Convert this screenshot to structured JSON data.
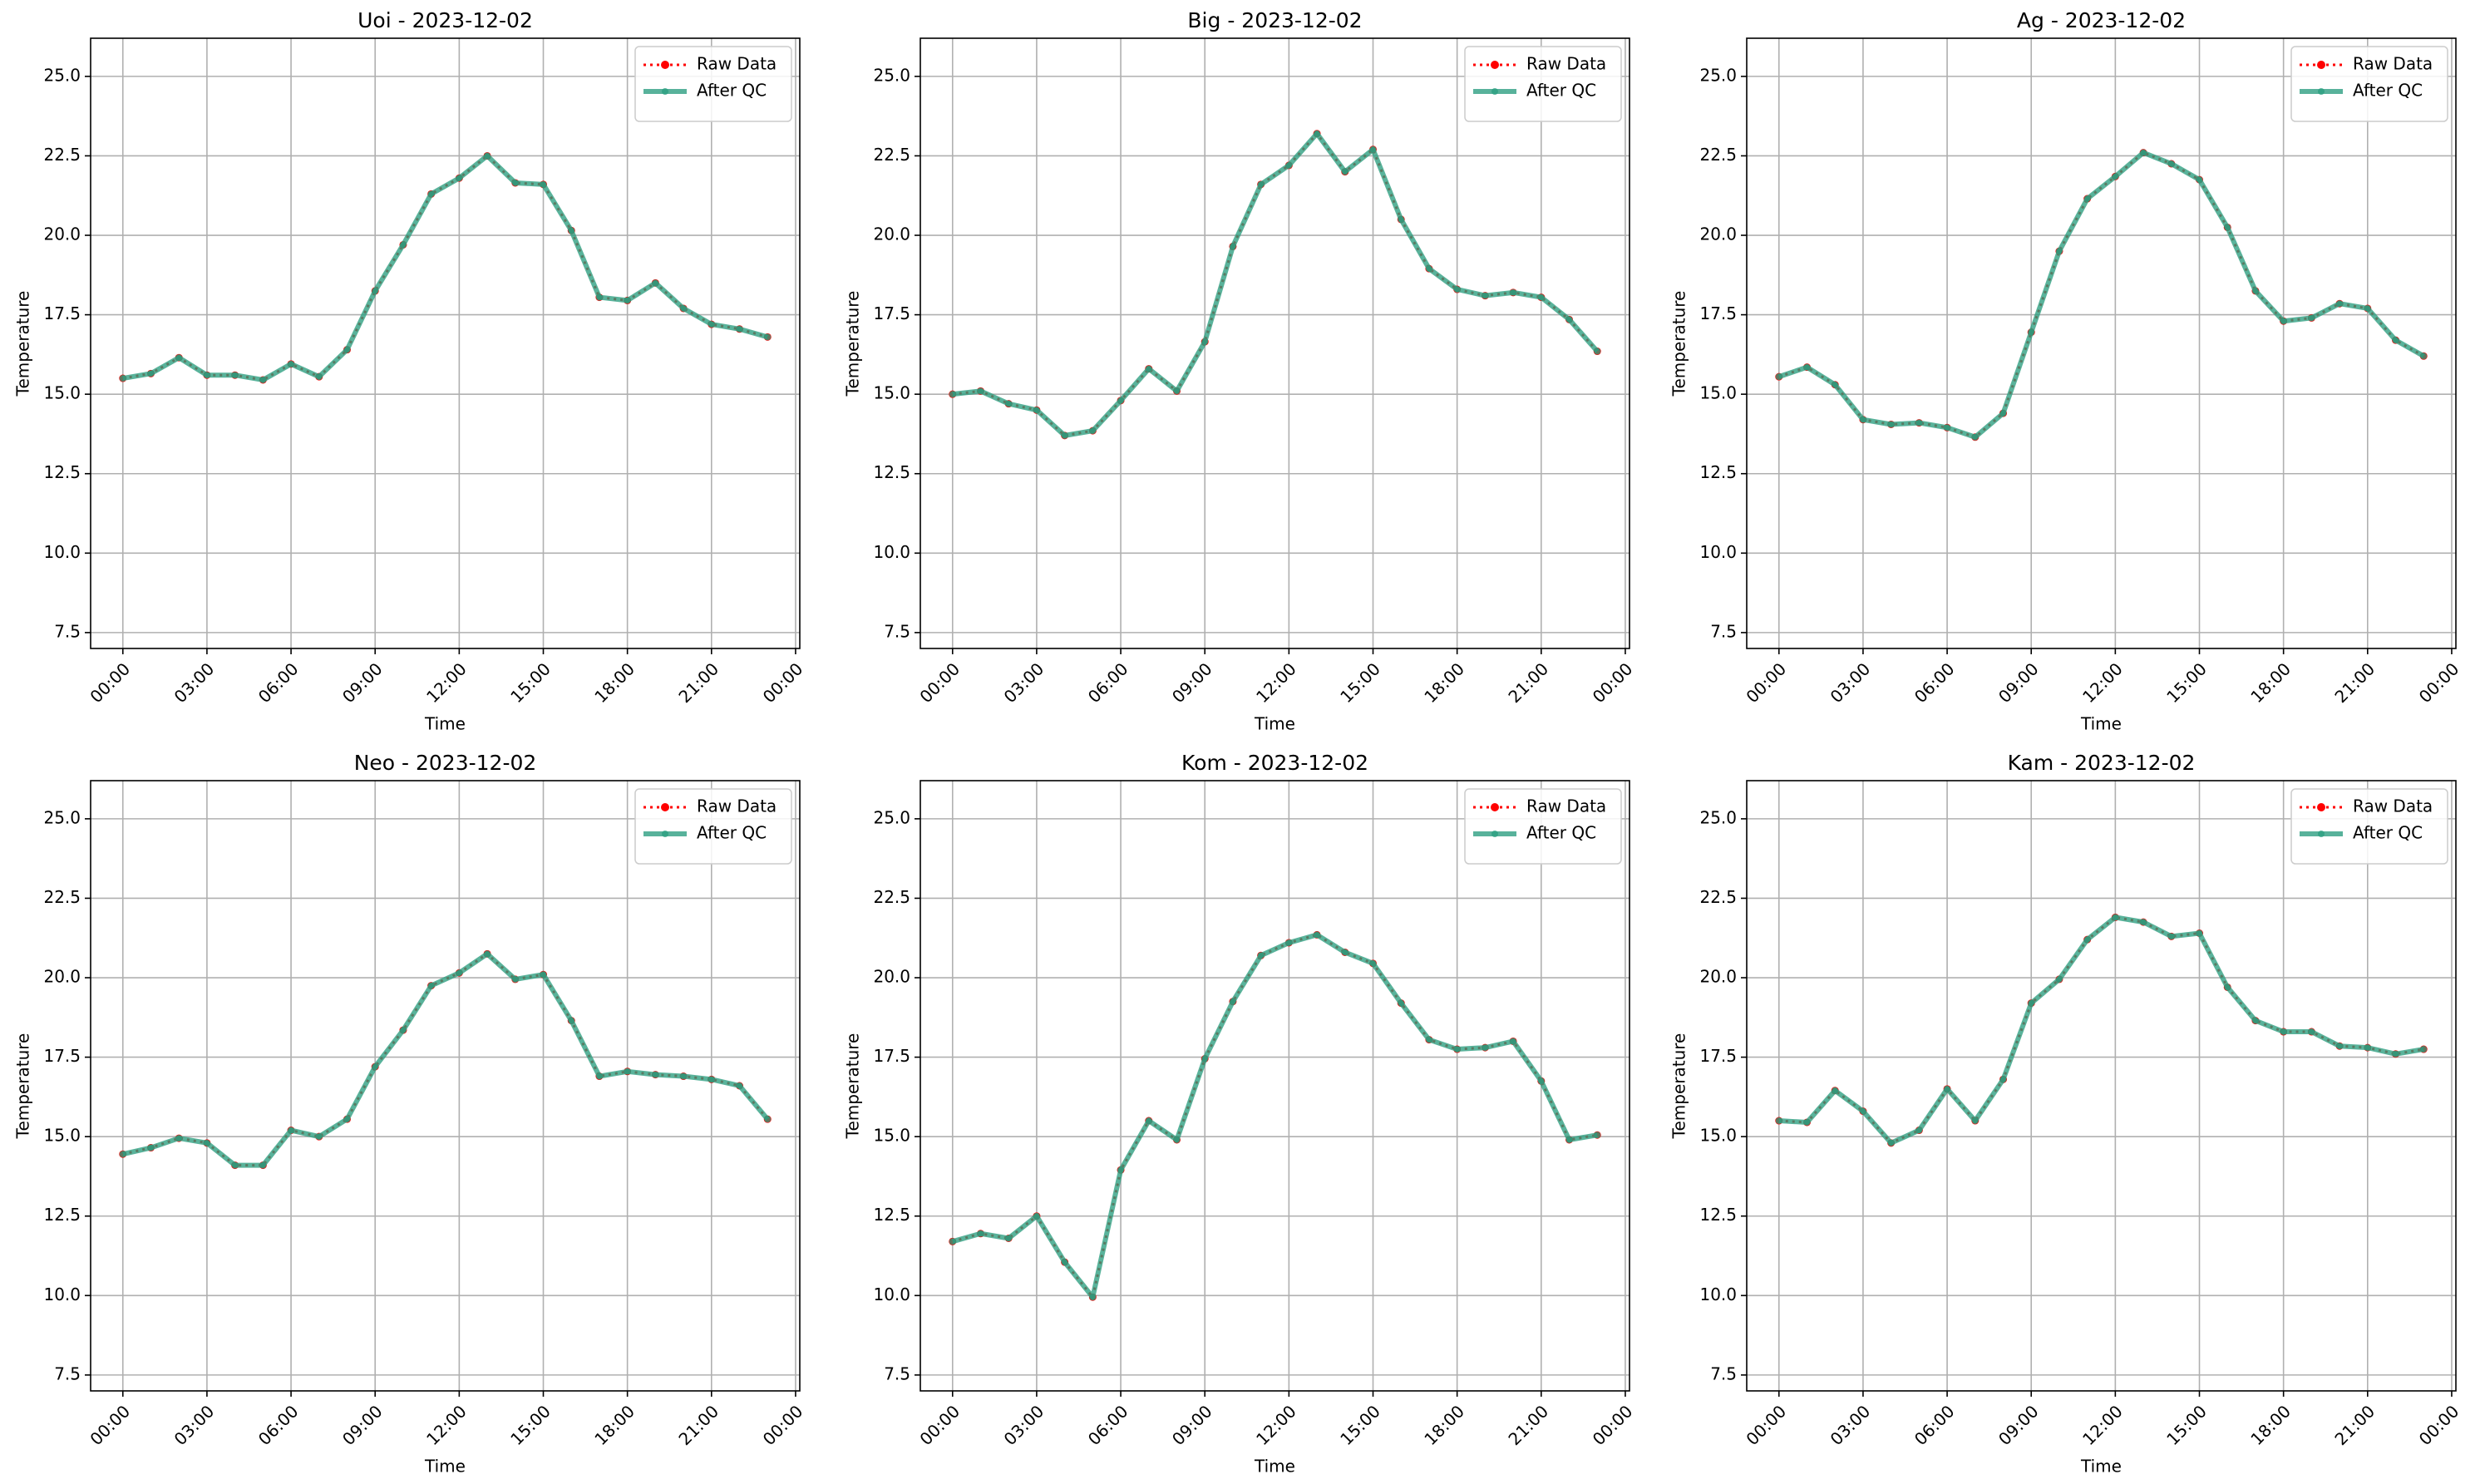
{
  "chart_data": [
    {
      "type": "line",
      "title": "Uoi - 2023-12-02",
      "xlabel": "Time",
      "ylabel": "Temperature",
      "grid": true,
      "legend": "upper right",
      "x": [
        0,
        1,
        2,
        3,
        4,
        5,
        6,
        7,
        8,
        9,
        10,
        11,
        12,
        13,
        14,
        15,
        16,
        17,
        18,
        19,
        20,
        21,
        22,
        23
      ],
      "xlim": [
        -1.15,
        24.15
      ],
      "ylim": [
        7.0,
        26.2
      ],
      "xticks": [
        {
          "value": 0,
          "label": "00:00"
        },
        {
          "value": 3,
          "label": "03:00"
        },
        {
          "value": 6,
          "label": "06:00"
        },
        {
          "value": 9,
          "label": "09:00"
        },
        {
          "value": 12,
          "label": "12:00"
        },
        {
          "value": 15,
          "label": "15:00"
        },
        {
          "value": 18,
          "label": "18:00"
        },
        {
          "value": 21,
          "label": "21:00"
        },
        {
          "value": 24,
          "label": "00:00"
        }
      ],
      "yticks": [
        7.5,
        {
          "value": 10,
          "label": "10.0"
        },
        12.5,
        {
          "value": 15,
          "label": "15.0"
        },
        17.5,
        {
          "value": 20,
          "label": "20.0"
        },
        22.5,
        {
          "value": 25,
          "label": "25.0"
        }
      ],
      "series": [
        {
          "name": "Raw Data",
          "color": "#ff0000",
          "values": [
            15.5,
            15.65,
            16.15,
            15.6,
            15.6,
            15.45,
            15.95,
            15.55,
            16.4,
            18.25,
            19.7,
            21.3,
            21.8,
            22.5,
            21.65,
            21.6,
            20.15,
            18.05,
            17.95,
            18.5,
            17.7,
            17.2,
            17.05,
            16.8
          ]
        },
        {
          "name": "After QC",
          "color": "#2a9d7f",
          "values": [
            15.5,
            15.65,
            16.15,
            15.6,
            15.6,
            15.45,
            15.95,
            15.55,
            16.4,
            18.25,
            19.7,
            21.3,
            21.8,
            22.5,
            21.65,
            21.6,
            20.15,
            18.05,
            17.95,
            18.5,
            17.7,
            17.2,
            17.05,
            16.8
          ]
        }
      ]
    },
    {
      "type": "line",
      "title": "Big - 2023-12-02",
      "xlabel": "Time",
      "ylabel": "Temperature",
      "grid": true,
      "legend": "upper right",
      "x": [
        0,
        1,
        2,
        3,
        4,
        5,
        6,
        7,
        8,
        9,
        10,
        11,
        12,
        13,
        14,
        15,
        16,
        17,
        18,
        19,
        20,
        21,
        22,
        23
      ],
      "xlim": [
        -1.15,
        24.15
      ],
      "ylim": [
        7.0,
        26.2
      ],
      "xticks": [
        {
          "value": 0,
          "label": "00:00"
        },
        {
          "value": 3,
          "label": "03:00"
        },
        {
          "value": 6,
          "label": "06:00"
        },
        {
          "value": 9,
          "label": "09:00"
        },
        {
          "value": 12,
          "label": "12:00"
        },
        {
          "value": 15,
          "label": "15:00"
        },
        {
          "value": 18,
          "label": "18:00"
        },
        {
          "value": 21,
          "label": "21:00"
        },
        {
          "value": 24,
          "label": "00:00"
        }
      ],
      "yticks": [
        7.5,
        {
          "value": 10,
          "label": "10.0"
        },
        12.5,
        {
          "value": 15,
          "label": "15.0"
        },
        17.5,
        {
          "value": 20,
          "label": "20.0"
        },
        22.5,
        {
          "value": 25,
          "label": "25.0"
        }
      ],
      "series": [
        {
          "name": "Raw Data",
          "color": "#ff0000",
          "values": [
            15.0,
            15.1,
            14.7,
            14.5,
            13.7,
            13.85,
            14.8,
            15.8,
            15.1,
            16.65,
            19.65,
            21.6,
            22.2,
            23.2,
            22.0,
            22.7,
            20.5,
            18.95,
            18.3,
            18.1,
            18.2,
            18.05,
            17.35,
            16.35
          ]
        },
        {
          "name": "After QC",
          "color": "#2a9d7f",
          "values": [
            15.0,
            15.1,
            14.7,
            14.5,
            13.7,
            13.85,
            14.8,
            15.8,
            15.1,
            16.65,
            19.65,
            21.6,
            22.2,
            23.2,
            22.0,
            22.7,
            20.5,
            18.95,
            18.3,
            18.1,
            18.2,
            18.05,
            17.35,
            16.35
          ]
        }
      ]
    },
    {
      "type": "line",
      "title": "Ag - 2023-12-02",
      "xlabel": "Time",
      "ylabel": "Temperature",
      "grid": true,
      "legend": "upper right",
      "x": [
        0,
        1,
        2,
        3,
        4,
        5,
        6,
        7,
        8,
        9,
        10,
        11,
        12,
        13,
        14,
        15,
        16,
        17,
        18,
        19,
        20,
        21,
        22,
        23
      ],
      "xlim": [
        -1.15,
        24.15
      ],
      "ylim": [
        7.0,
        26.2
      ],
      "xticks": [
        {
          "value": 0,
          "label": "00:00"
        },
        {
          "value": 3,
          "label": "03:00"
        },
        {
          "value": 6,
          "label": "06:00"
        },
        {
          "value": 9,
          "label": "09:00"
        },
        {
          "value": 12,
          "label": "12:00"
        },
        {
          "value": 15,
          "label": "15:00"
        },
        {
          "value": 18,
          "label": "18:00"
        },
        {
          "value": 21,
          "label": "21:00"
        },
        {
          "value": 24,
          "label": "00:00"
        }
      ],
      "yticks": [
        7.5,
        {
          "value": 10,
          "label": "10.0"
        },
        12.5,
        {
          "value": 15,
          "label": "15.0"
        },
        17.5,
        {
          "value": 20,
          "label": "20.0"
        },
        22.5,
        {
          "value": 25,
          "label": "25.0"
        }
      ],
      "series": [
        {
          "name": "Raw Data",
          "color": "#ff0000",
          "values": [
            15.55,
            15.85,
            15.3,
            14.2,
            14.05,
            14.1,
            13.95,
            13.65,
            14.4,
            16.95,
            19.5,
            21.15,
            21.85,
            22.6,
            22.25,
            21.75,
            20.25,
            18.25,
            17.3,
            17.4,
            17.85,
            17.7,
            16.7,
            16.2
          ]
        },
        {
          "name": "After QC",
          "color": "#2a9d7f",
          "values": [
            15.55,
            15.85,
            15.3,
            14.2,
            14.05,
            14.1,
            13.95,
            13.65,
            14.4,
            16.95,
            19.5,
            21.15,
            21.85,
            22.6,
            22.25,
            21.75,
            20.25,
            18.25,
            17.3,
            17.4,
            17.85,
            17.7,
            16.7,
            16.2
          ]
        }
      ]
    },
    {
      "type": "line",
      "title": "Neo - 2023-12-02",
      "xlabel": "Time",
      "ylabel": "Temperature",
      "grid": true,
      "legend": "upper right",
      "x": [
        0,
        1,
        2,
        3,
        4,
        5,
        6,
        7,
        8,
        9,
        10,
        11,
        12,
        13,
        14,
        15,
        16,
        17,
        18,
        19,
        20,
        21,
        22,
        23
      ],
      "xlim": [
        -1.15,
        24.15
      ],
      "ylim": [
        7.0,
        26.2
      ],
      "xticks": [
        {
          "value": 0,
          "label": "00:00"
        },
        {
          "value": 3,
          "label": "03:00"
        },
        {
          "value": 6,
          "label": "06:00"
        },
        {
          "value": 9,
          "label": "09:00"
        },
        {
          "value": 12,
          "label": "12:00"
        },
        {
          "value": 15,
          "label": "15:00"
        },
        {
          "value": 18,
          "label": "18:00"
        },
        {
          "value": 21,
          "label": "21:00"
        },
        {
          "value": 24,
          "label": "00:00"
        }
      ],
      "yticks": [
        7.5,
        {
          "value": 10,
          "label": "10.0"
        },
        12.5,
        {
          "value": 15,
          "label": "15.0"
        },
        17.5,
        {
          "value": 20,
          "label": "20.0"
        },
        22.5,
        {
          "value": 25,
          "label": "25.0"
        }
      ],
      "series": [
        {
          "name": "Raw Data",
          "color": "#ff0000",
          "values": [
            14.45,
            14.65,
            14.95,
            14.8,
            14.1,
            14.1,
            15.2,
            15.0,
            15.55,
            17.2,
            18.35,
            19.75,
            20.15,
            20.75,
            19.95,
            20.1,
            18.65,
            16.9,
            17.05,
            16.95,
            16.9,
            16.8,
            16.6,
            15.55
          ]
        },
        {
          "name": "After QC",
          "color": "#2a9d7f",
          "values": [
            14.45,
            14.65,
            14.95,
            14.8,
            14.1,
            14.1,
            15.2,
            15.0,
            15.55,
            17.2,
            18.35,
            19.75,
            20.15,
            20.75,
            19.95,
            20.1,
            18.65,
            16.9,
            17.05,
            16.95,
            16.9,
            16.8,
            16.6,
            15.55
          ]
        }
      ]
    },
    {
      "type": "line",
      "title": "Kom - 2023-12-02",
      "xlabel": "Time",
      "ylabel": "Temperature",
      "grid": true,
      "legend": "upper right",
      "x": [
        0,
        1,
        2,
        3,
        4,
        5,
        6,
        7,
        8,
        9,
        10,
        11,
        12,
        13,
        14,
        15,
        16,
        17,
        18,
        19,
        20,
        21,
        22,
        23
      ],
      "xlim": [
        -1.15,
        24.15
      ],
      "ylim": [
        7.0,
        26.2
      ],
      "xticks": [
        {
          "value": 0,
          "label": "00:00"
        },
        {
          "value": 3,
          "label": "03:00"
        },
        {
          "value": 6,
          "label": "06:00"
        },
        {
          "value": 9,
          "label": "09:00"
        },
        {
          "value": 12,
          "label": "12:00"
        },
        {
          "value": 15,
          "label": "15:00"
        },
        {
          "value": 18,
          "label": "18:00"
        },
        {
          "value": 21,
          "label": "21:00"
        },
        {
          "value": 24,
          "label": "00:00"
        }
      ],
      "yticks": [
        7.5,
        {
          "value": 10,
          "label": "10.0"
        },
        12.5,
        {
          "value": 15,
          "label": "15.0"
        },
        17.5,
        {
          "value": 20,
          "label": "20.0"
        },
        22.5,
        {
          "value": 25,
          "label": "25.0"
        }
      ],
      "series": [
        {
          "name": "Raw Data",
          "color": "#ff0000",
          "values": [
            11.7,
            11.95,
            11.8,
            12.5,
            11.05,
            9.95,
            13.95,
            15.5,
            14.9,
            17.45,
            19.25,
            20.7,
            21.1,
            21.35,
            20.8,
            20.45,
            19.2,
            18.05,
            17.75,
            17.8,
            18.0,
            16.75,
            14.9,
            15.05
          ]
        },
        {
          "name": "After QC",
          "color": "#2a9d7f",
          "values": [
            11.7,
            11.95,
            11.8,
            12.5,
            11.05,
            9.95,
            13.95,
            15.5,
            14.9,
            17.45,
            19.25,
            20.7,
            21.1,
            21.35,
            20.8,
            20.45,
            19.2,
            18.05,
            17.75,
            17.8,
            18.0,
            16.75,
            14.9,
            15.05
          ]
        }
      ]
    },
    {
      "type": "line",
      "title": "Kam - 2023-12-02",
      "xlabel": "Time",
      "ylabel": "Temperature",
      "grid": true,
      "legend": "upper right",
      "x": [
        0,
        1,
        2,
        3,
        4,
        5,
        6,
        7,
        8,
        9,
        10,
        11,
        12,
        13,
        14,
        15,
        16,
        17,
        18,
        19,
        20,
        21,
        22,
        23
      ],
      "xlim": [
        -1.15,
        24.15
      ],
      "ylim": [
        7.0,
        26.2
      ],
      "xticks": [
        {
          "value": 0,
          "label": "00:00"
        },
        {
          "value": 3,
          "label": "03:00"
        },
        {
          "value": 6,
          "label": "06:00"
        },
        {
          "value": 9,
          "label": "09:00"
        },
        {
          "value": 12,
          "label": "12:00"
        },
        {
          "value": 15,
          "label": "15:00"
        },
        {
          "value": 18,
          "label": "18:00"
        },
        {
          "value": 21,
          "label": "21:00"
        },
        {
          "value": 24,
          "label": "00:00"
        }
      ],
      "yticks": [
        7.5,
        {
          "value": 10,
          "label": "10.0"
        },
        12.5,
        {
          "value": 15,
          "label": "15.0"
        },
        17.5,
        {
          "value": 20,
          "label": "20.0"
        },
        22.5,
        {
          "value": 25,
          "label": "25.0"
        }
      ],
      "series": [
        {
          "name": "Raw Data",
          "color": "#ff0000",
          "values": [
            15.5,
            15.45,
            16.45,
            15.8,
            14.8,
            15.2,
            16.5,
            15.5,
            16.8,
            19.2,
            19.95,
            21.2,
            21.9,
            21.75,
            21.3,
            21.4,
            19.7,
            18.65,
            18.3,
            18.3,
            17.85,
            17.8,
            17.6,
            17.75
          ]
        },
        {
          "name": "After QC",
          "color": "#2a9d7f",
          "values": [
            15.5,
            15.45,
            16.45,
            15.8,
            14.8,
            15.2,
            16.5,
            15.5,
            16.8,
            19.2,
            19.95,
            21.2,
            21.9,
            21.75,
            21.3,
            21.4,
            19.7,
            18.65,
            18.3,
            18.3,
            17.85,
            17.8,
            17.6,
            17.75
          ]
        }
      ]
    }
  ]
}
